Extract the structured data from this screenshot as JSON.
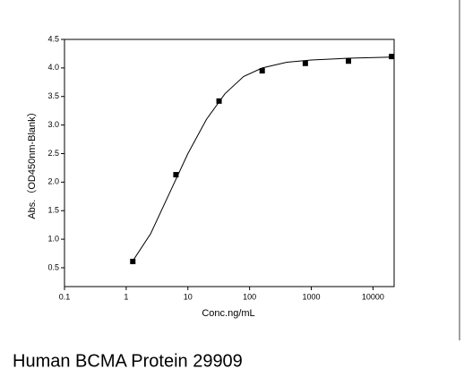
{
  "chart_data": {
    "type": "scatter",
    "caption": "Human BCMA Protein 29909",
    "x_label": "Conc.ng/mL",
    "y_label": "Abs.（OD450nm-Blank）",
    "xscale": "log",
    "xlim": [
      0.1,
      22000
    ],
    "ylim": [
      0.17,
      4.5
    ],
    "xticks": [
      0.1,
      1,
      10,
      100,
      1000,
      10000
    ],
    "yticks": [
      {
        "value": 4.5,
        "label": "4.5"
      },
      {
        "value": 4,
        "label": "4.0"
      },
      {
        "value": 3.5,
        "label": "3.5"
      },
      {
        "value": 3,
        "label": "3.0"
      },
      {
        "value": 2.5,
        "label": "2.5"
      },
      {
        "value": 2,
        "label": "2.0"
      },
      {
        "value": 1.5,
        "label": "1.5"
      },
      {
        "value": 1,
        "label": "1.0"
      },
      {
        "value": 0.5,
        "label": "0.5"
      }
    ],
    "series": [
      {
        "kind": "points",
        "color": "#000000",
        "x": [
          1.28,
          6.4,
          32,
          160,
          800,
          4000,
          20000
        ],
        "values": [
          0.61,
          2.13,
          3.42,
          3.95,
          4.08,
          4.12,
          4.2
        ]
      },
      {
        "kind": "line",
        "color": "#000000",
        "x": [
          1.28,
          2.5,
          5,
          10,
          20,
          40,
          80,
          160,
          400,
          1000,
          4000,
          20000
        ],
        "values": [
          0.62,
          1.1,
          1.8,
          2.5,
          3.1,
          3.55,
          3.85,
          4.0,
          4.1,
          4.14,
          4.17,
          4.19
        ]
      }
    ]
  }
}
